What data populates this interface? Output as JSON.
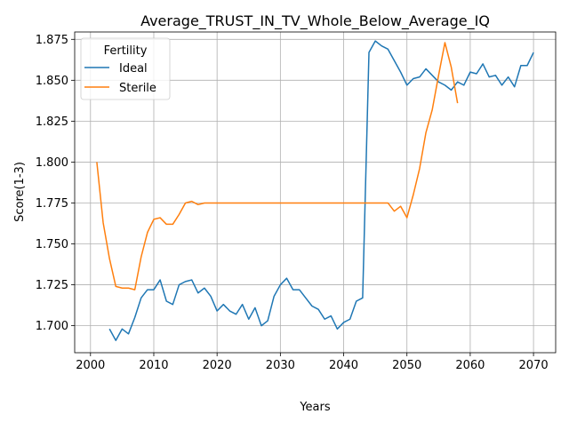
{
  "chart_data": {
    "type": "line",
    "title": "Average_TRUST_IN_TV_Whole_Below_Average_IQ",
    "xlabel": "Years",
    "ylabel": "Score(1-3)",
    "xlim": [
      1997.5,
      2073.5
    ],
    "ylim": [
      1.6835,
      1.8795
    ],
    "xticks": [
      2000,
      2010,
      2020,
      2030,
      2040,
      2050,
      2060,
      2070
    ],
    "xtick_labels": [
      "2000",
      "2010",
      "2020",
      "2030",
      "2040",
      "2050",
      "2060",
      "2070"
    ],
    "yticks": [
      1.7,
      1.725,
      1.75,
      1.775,
      1.8,
      1.825,
      1.85,
      1.875
    ],
    "ytick_labels": [
      "1.700",
      "1.725",
      "1.750",
      "1.775",
      "1.800",
      "1.825",
      "1.850",
      "1.875"
    ],
    "grid": true,
    "legend": {
      "title": "Fertility",
      "placement": "upper-left"
    },
    "series": [
      {
        "name": "Ideal",
        "color": "#1f77b4",
        "x": [
          2003,
          2004,
          2005,
          2006,
          2007,
          2008,
          2009,
          2010,
          2011,
          2012,
          2013,
          2014,
          2015,
          2016,
          2017,
          2018,
          2019,
          2020,
          2021,
          2022,
          2023,
          2024,
          2025,
          2026,
          2027,
          2028,
          2029,
          2030,
          2031,
          2032,
          2033,
          2034,
          2035,
          2036,
          2037,
          2038,
          2039,
          2040,
          2041,
          2042,
          2043,
          2044,
          2045,
          2046,
          2047,
          2048,
          2049,
          2050,
          2051,
          2052,
          2053,
          2054,
          2055,
          2056,
          2057,
          2058,
          2059,
          2060,
          2061,
          2062,
          2063,
          2064,
          2065,
          2066,
          2067,
          2068,
          2069,
          2070
        ],
        "y": [
          1.698,
          1.691,
          1.698,
          1.695,
          1.705,
          1.717,
          1.722,
          1.722,
          1.728,
          1.715,
          1.713,
          1.725,
          1.727,
          1.728,
          1.72,
          1.723,
          1.718,
          1.709,
          1.713,
          1.709,
          1.707,
          1.713,
          1.704,
          1.711,
          1.7,
          1.703,
          1.718,
          1.725,
          1.729,
          1.722,
          1.722,
          1.717,
          1.712,
          1.71,
          1.704,
          1.706,
          1.698,
          1.702,
          1.704,
          1.715,
          1.717,
          1.867,
          1.874,
          1.871,
          1.869,
          1.862,
          1.855,
          1.847,
          1.851,
          1.852,
          1.857,
          1.853,
          1.849,
          1.847,
          1.844,
          1.849,
          1.847,
          1.855,
          1.854,
          1.86,
          1.852,
          1.853,
          1.847,
          1.852,
          1.846,
          1.859,
          1.859,
          1.867
        ]
      },
      {
        "name": "Sterile",
        "color": "#ff7f0e",
        "x": [
          2001,
          2002,
          2003,
          2004,
          2005,
          2006,
          2007,
          2008,
          2009,
          2010,
          2011,
          2012,
          2013,
          2014,
          2015,
          2016,
          2017,
          2018,
          2019,
          2020,
          2021,
          2022,
          2023,
          2024,
          2025,
          2026,
          2027,
          2028,
          2029,
          2030,
          2031,
          2032,
          2033,
          2034,
          2035,
          2036,
          2037,
          2038,
          2039,
          2040,
          2041,
          2042,
          2043,
          2044,
          2045,
          2046,
          2047,
          2048,
          2049,
          2050,
          2051,
          2052,
          2053,
          2054,
          2055,
          2056,
          2057,
          2058
        ],
        "y": [
          1.8,
          1.763,
          1.741,
          1.724,
          1.723,
          1.723,
          1.722,
          1.742,
          1.757,
          1.765,
          1.766,
          1.762,
          1.762,
          1.768,
          1.775,
          1.776,
          1.774,
          1.775,
          1.775,
          1.775,
          1.775,
          1.775,
          1.775,
          1.775,
          1.775,
          1.775,
          1.775,
          1.775,
          1.775,
          1.775,
          1.775,
          1.775,
          1.775,
          1.775,
          1.775,
          1.775,
          1.775,
          1.775,
          1.775,
          1.775,
          1.775,
          1.775,
          1.775,
          1.775,
          1.775,
          1.775,
          1.775,
          1.77,
          1.773,
          1.766,
          1.78,
          1.796,
          1.818,
          1.832,
          1.853,
          1.873,
          1.858,
          1.836
        ]
      }
    ]
  }
}
